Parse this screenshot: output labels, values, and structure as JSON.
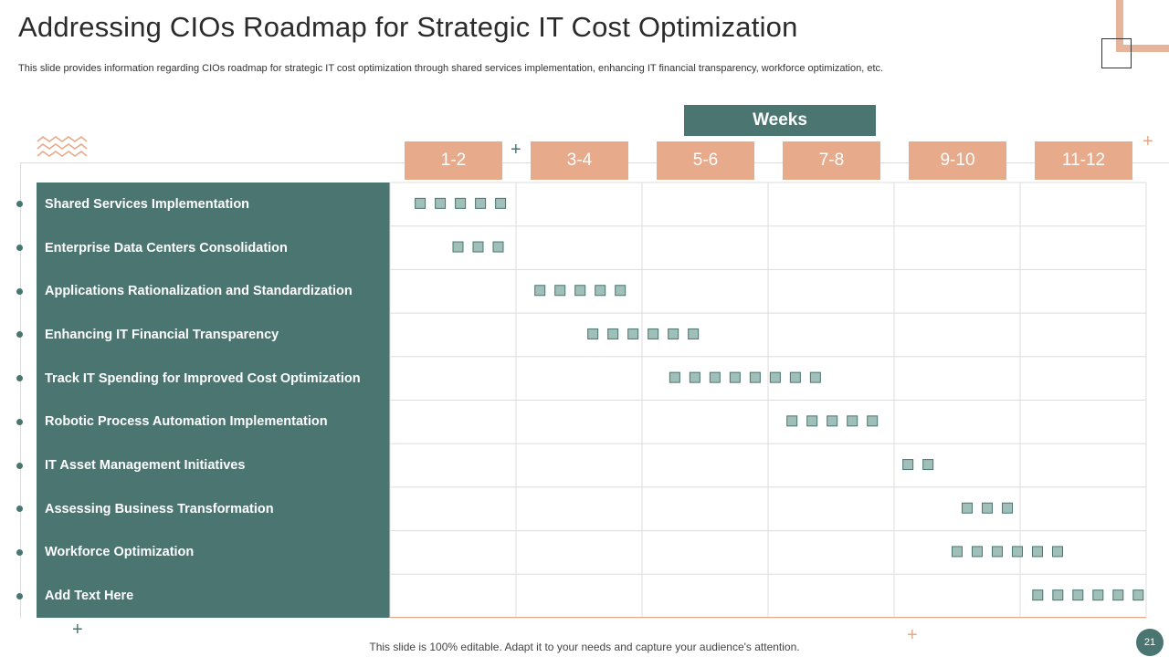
{
  "slide": {
    "title": "Addressing CIOs Roadmap for Strategic IT Cost Optimization",
    "subtitle": "This slide provides information regarding CIOs roadmap for strategic IT cost optimization through shared services implementation, enhancing IT financial transparency, workforce optimization, etc.",
    "footer": "This slide is 100% editable. Adapt it to your needs and capture your audience's attention.",
    "page_number": "21"
  },
  "colors": {
    "teal": "#4a7571",
    "peach": "#e7ab8c",
    "marker_fill": "#9fbfb8",
    "marker_stroke": "#4a7571"
  },
  "chart_data": {
    "type": "table",
    "title": "Weeks",
    "columns": [
      "1-2",
      "3-4",
      "5-6",
      "7-8",
      "9-10",
      "11-12"
    ],
    "rows": [
      {
        "label": "Shared Services Implementation",
        "start": 0.2,
        "count": 5
      },
      {
        "label": "Enterprise Data Centers Consolidation",
        "start": 0.5,
        "count": 3
      },
      {
        "label": "Applications  Rationalization and Standardization",
        "start": 1.15,
        "count": 5
      },
      {
        "label": "Enhancing IT Financial  Transparency",
        "start": 1.57,
        "count": 6
      },
      {
        "label": "Track IT Spending for Improved Cost Optimization",
        "start": 2.22,
        "count": 8
      },
      {
        "label": "Robotic Process Automation  Implementation",
        "start": 3.15,
        "count": 5
      },
      {
        "label": "IT Asset Management Initiatives",
        "start": 4.07,
        "count": 2
      },
      {
        "label": "Assessing  Business  Transformation",
        "start": 4.54,
        "count": 3
      },
      {
        "label": "Workforce Optimization",
        "start": 4.46,
        "count": 6
      },
      {
        "label": "Add  Text Here",
        "start": 5.1,
        "count": 6
      }
    ]
  }
}
